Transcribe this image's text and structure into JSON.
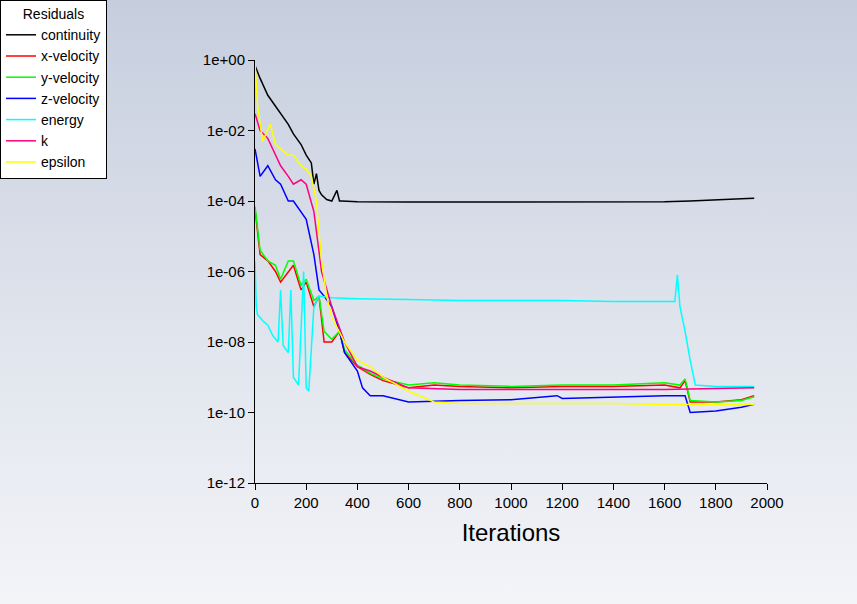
{
  "chart_data": {
    "type": "line",
    "legend_title": "Residuals",
    "x_label": "Iterations",
    "log": "y",
    "grid": false,
    "legend": "upper left",
    "xlim": [
      0,
      2000
    ],
    "xticks": [
      0,
      200,
      400,
      600,
      800,
      1000,
      1200,
      1400,
      1600,
      1800,
      2000
    ],
    "ylim": [
      1e-12,
      1
    ],
    "yticks": [
      {
        "value": 1,
        "label": "1e+00"
      },
      {
        "value": 0.01,
        "label": "1e-02"
      },
      {
        "value": 0.0001,
        "label": "1e-04"
      },
      {
        "value": 1e-06,
        "label": "1e-06"
      },
      {
        "value": 1e-08,
        "label": "1e-08"
      },
      {
        "value": 1e-10,
        "label": "1e-10"
      },
      {
        "value": 1e-12,
        "label": "1e-12"
      }
    ],
    "series": [
      {
        "name": "continuity",
        "color": "#000000",
        "x": [
          0,
          20,
          50,
          80,
          100,
          130,
          150,
          180,
          200,
          220,
          230,
          240,
          250,
          260,
          280,
          300,
          320,
          330,
          340,
          400,
          600,
          800,
          1000,
          1200,
          1400,
          1600,
          1700,
          1800,
          1900,
          1950
        ],
        "values": [
          0.7,
          0.3,
          0.1,
          0.05,
          0.03,
          0.015,
          0.008,
          0.004,
          0.002,
          0.0012,
          0.0003,
          0.0006,
          0.0002,
          0.00015,
          0.00011,
          0.0001,
          0.0002,
          0.0001,
          0.0001,
          9.5e-05,
          9.3e-05,
          9.3e-05,
          9.3e-05,
          9.3e-05,
          9.3e-05,
          9.5e-05,
          0.0001,
          0.000105,
          0.000115,
          0.00012
        ]
      },
      {
        "name": "x-velocity",
        "color": "#ff0000",
        "x": [
          0,
          20,
          50,
          80,
          100,
          130,
          150,
          180,
          200,
          230,
          250,
          270,
          300,
          330,
          350,
          400,
          450,
          500,
          600,
          700,
          800,
          1000,
          1200,
          1400,
          1600,
          1660,
          1680,
          1700,
          1800,
          1900,
          1950
        ],
        "values": [
          6e-05,
          3e-06,
          2e-06,
          1e-06,
          5e-07,
          1e-06,
          1.5e-06,
          3e-07,
          5e-07,
          1e-07,
          2e-07,
          1e-08,
          1e-08,
          2e-08,
          5e-09,
          2e-09,
          1.2e-09,
          8e-10,
          5e-10,
          6e-10,
          5.5e-10,
          5e-10,
          5.5e-10,
          5.5e-10,
          6e-10,
          5e-10,
          8e-10,
          2e-10,
          2e-10,
          2.3e-10,
          3e-10
        ]
      },
      {
        "name": "y-velocity",
        "color": "#00ff00",
        "x": [
          0,
          20,
          50,
          80,
          100,
          130,
          150,
          180,
          200,
          230,
          250,
          270,
          300,
          330,
          350,
          400,
          450,
          500,
          600,
          700,
          800,
          1000,
          1200,
          1400,
          1600,
          1660,
          1680,
          1700,
          1800,
          1900,
          1950
        ],
        "values": [
          7e-05,
          4e-06,
          2e-06,
          1.5e-06,
          6e-07,
          2e-06,
          2e-06,
          4e-07,
          6e-07,
          1.5e-07,
          2e-07,
          2e-08,
          1.2e-08,
          2e-08,
          6e-09,
          2.2e-09,
          1.3e-09,
          9e-10,
          6e-10,
          7e-10,
          6e-10,
          5.5e-10,
          6e-10,
          6e-10,
          7e-10,
          6e-10,
          9e-10,
          2.2e-10,
          2e-10,
          2.2e-10,
          2.8e-10
        ]
      },
      {
        "name": "z-velocity",
        "color": "#0000ff",
        "x": [
          0,
          20,
          50,
          80,
          100,
          130,
          150,
          180,
          200,
          230,
          250,
          270,
          300,
          330,
          350,
          400,
          420,
          450,
          500,
          600,
          800,
          1000,
          1180,
          1200,
          1400,
          1600,
          1680,
          1700,
          1800,
          1900,
          1950
        ],
        "values": [
          0.003,
          0.0005,
          0.001,
          0.0004,
          0.0003,
          0.0001,
          0.0001,
          5e-05,
          3e-05,
          3e-06,
          3e-07,
          2e-07,
          1e-07,
          2e-08,
          5e-09,
          1.5e-09,
          5e-10,
          3e-10,
          3e-10,
          2e-10,
          2.2e-10,
          2.3e-10,
          3e-10,
          2.5e-10,
          2.8e-10,
          3e-10,
          3e-10,
          1e-10,
          1.1e-10,
          1.4e-10,
          1.7e-10
        ]
      },
      {
        "name": "energy",
        "color": "#00ffff",
        "x": [
          0,
          5,
          10,
          30,
          50,
          70,
          90,
          100,
          110,
          130,
          140,
          150,
          170,
          190,
          200,
          210,
          230,
          250,
          300,
          400,
          600,
          800,
          1000,
          1200,
          1400,
          1600,
          1640,
          1650,
          1660,
          1680,
          1700,
          1720,
          1800,
          1950
        ],
        "values": [
          2e-06,
          1e-07,
          6e-08,
          4e-08,
          3e-08,
          1.5e-08,
          1e-08,
          3e-07,
          8e-09,
          5e-09,
          3e-07,
          1e-09,
          6e-10,
          1e-06,
          5e-10,
          4e-10,
          1e-07,
          2e-07,
          1.8e-07,
          1.7e-07,
          1.6e-07,
          1.5e-07,
          1.5e-07,
          1.5e-07,
          1.4e-07,
          1.4e-07,
          1.4e-07,
          8e-07,
          1e-07,
          2e-08,
          3e-09,
          6e-10,
          5.5e-10,
          5.5e-10
        ]
      },
      {
        "name": "k",
        "color": "#ff0080",
        "x": [
          0,
          20,
          50,
          80,
          100,
          130,
          150,
          180,
          200,
          230,
          260,
          300,
          350,
          400,
          450,
          500,
          600,
          800,
          1000,
          1200,
          1400,
          1600,
          1800,
          1950
        ],
        "values": [
          0.03,
          0.01,
          0.006,
          0.002,
          0.001,
          0.0005,
          0.0003,
          0.0004,
          0.0003,
          5e-05,
          1e-06,
          1e-07,
          1e-08,
          2e-09,
          1.5e-09,
          1e-09,
          5e-10,
          4.5e-10,
          4.5e-10,
          4.5e-10,
          4.5e-10,
          4.5e-10,
          4.8e-10,
          5e-10
        ]
      },
      {
        "name": "epsilon",
        "color": "#ffff00",
        "x": [
          0,
          10,
          30,
          50,
          60,
          80,
          100,
          130,
          150,
          180,
          200,
          220,
          240,
          260,
          280,
          300,
          350,
          400,
          450,
          500,
          600,
          700,
          800,
          1000,
          1200,
          1400,
          1600,
          1800,
          1950
        ],
        "values": [
          0.8,
          0.05,
          0.005,
          0.01,
          0.015,
          0.004,
          0.003,
          0.002,
          0.002,
          0.001,
          0.0008,
          0.0005,
          0.0001,
          2e-06,
          2e-07,
          5e-08,
          1e-08,
          3e-09,
          2e-09,
          1e-09,
          4e-10,
          2e-10,
          1.8e-10,
          1.8e-10,
          1.8e-10,
          1.8e-10,
          1.7e-10,
          1.7e-10,
          1.7e-10
        ]
      }
    ]
  }
}
